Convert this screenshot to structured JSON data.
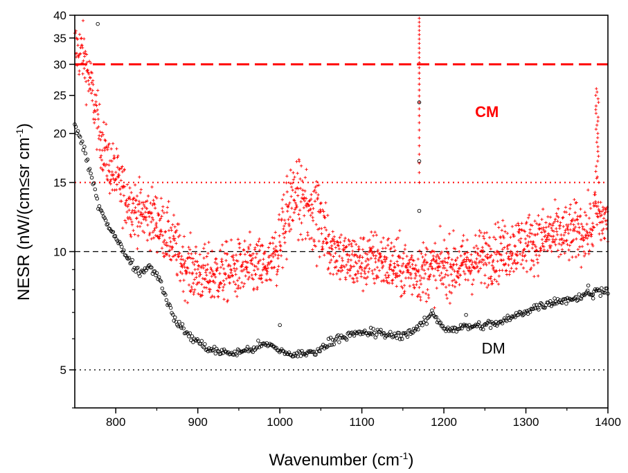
{
  "chart_data": {
    "type": "scatter",
    "xlabel_main": "Wavenumber (cm",
    "xlabel_sup": "-1",
    "xlabel_end": ")",
    "ylabel_main": "NESR (nW/(cm≤sr cm",
    "ylabel_sup": "-1",
    "ylabel_end": ")",
    "xlim": [
      750,
      1400
    ],
    "ylim": [
      4,
      40
    ],
    "yscale": "log",
    "x_ticks": [
      800,
      900,
      1000,
      1100,
      1200,
      1300,
      1400
    ],
    "x_tick_labels": [
      "800",
      "900",
      "1000",
      "1100",
      "1200",
      "1300",
      "1400"
    ],
    "y_ticks": [
      5,
      10,
      15,
      20,
      25,
      30,
      35,
      40
    ],
    "y_tick_labels": [
      "5",
      "10",
      "15",
      "20",
      "25",
      "30",
      "35",
      "40"
    ],
    "reference_lines": [
      {
        "y": 30,
        "style": "dashed-thick",
        "color": "#ff0000"
      },
      {
        "y": 15,
        "style": "dotted",
        "color": "#ff0000"
      },
      {
        "y": 10,
        "style": "dashed",
        "color": "#000000"
      },
      {
        "y": 5,
        "style": "dotted",
        "color": "#000000"
      }
    ],
    "annotations": [
      {
        "text": "CM",
        "x": 1238,
        "y": 22,
        "color": "#ff0000"
      },
      {
        "text": "DM",
        "x": 1246,
        "y": 5.5,
        "color": "#000000"
      }
    ],
    "series": [
      {
        "name": "CM",
        "marker": "plus",
        "color": "#ff0000",
        "x": [
          750,
          760,
          770,
          780,
          790,
          800,
          810,
          820,
          830,
          840,
          850,
          860,
          870,
          880,
          890,
          900,
          910,
          920,
          930,
          940,
          950,
          960,
          970,
          980,
          990,
          1000,
          1005,
          1010,
          1020,
          1030,
          1040,
          1050,
          1060,
          1070,
          1080,
          1090,
          1100,
          1110,
          1120,
          1130,
          1140,
          1150,
          1160,
          1170,
          1180,
          1190,
          1200,
          1210,
          1220,
          1230,
          1240,
          1250,
          1260,
          1270,
          1280,
          1290,
          1300,
          1310,
          1320,
          1330,
          1340,
          1350,
          1360,
          1370,
          1380,
          1385,
          1390,
          1400
        ],
        "y": [
          33,
          32,
          26,
          20,
          17,
          15.5,
          14,
          13,
          12.5,
          12.3,
          12,
          11.2,
          10.5,
          9.5,
          9,
          8.8,
          8.7,
          8.7,
          8.8,
          8.9,
          9,
          9.1,
          9.1,
          9.1,
          9.2,
          10.5,
          12,
          13,
          14,
          13,
          13,
          12,
          10.5,
          10,
          9.5,
          9.4,
          9.4,
          9.5,
          9.6,
          9.4,
          9.2,
          9,
          9,
          8.9,
          9,
          9,
          9.1,
          9.2,
          9.2,
          9.3,
          9.5,
          9.7,
          9.9,
          10,
          10.2,
          10.4,
          10.5,
          10.6,
          10.8,
          11,
          11,
          11,
          11.3,
          11.3,
          11.3,
          13,
          12,
          12
        ]
      },
      {
        "name": "DM",
        "marker": "circle",
        "color": "#000000",
        "x": [
          750,
          760,
          770,
          780,
          790,
          800,
          810,
          820,
          830,
          840,
          850,
          860,
          870,
          880,
          890,
          900,
          910,
          920,
          930,
          940,
          950,
          960,
          970,
          980,
          990,
          1000,
          1010,
          1020,
          1030,
          1040,
          1050,
          1060,
          1070,
          1080,
          1090,
          1100,
          1110,
          1120,
          1130,
          1140,
          1150,
          1160,
          1170,
          1180,
          1185,
          1190,
          1200,
          1210,
          1220,
          1230,
          1240,
          1250,
          1260,
          1270,
          1280,
          1290,
          1300,
          1310,
          1320,
          1330,
          1340,
          1350,
          1360,
          1370,
          1380,
          1390,
          1400
        ],
        "y": [
          21,
          18.5,
          15.5,
          13,
          11.8,
          10.8,
          10,
          9.3,
          8.8,
          9.2,
          8.8,
          7.8,
          6.8,
          6.4,
          6.1,
          5.9,
          5.7,
          5.6,
          5.55,
          5.5,
          5.55,
          5.6,
          5.7,
          5.8,
          5.75,
          5.6,
          5.5,
          5.45,
          5.5,
          5.55,
          5.65,
          5.85,
          6.05,
          6.1,
          6.15,
          6.2,
          6.2,
          6.2,
          6.15,
          6.1,
          6.15,
          6.25,
          6.45,
          6.7,
          7,
          6.8,
          6.4,
          6.35,
          6.4,
          6.45,
          6.45,
          6.5,
          6.55,
          6.6,
          6.75,
          6.9,
          7.05,
          7.2,
          7.3,
          7.4,
          7.5,
          7.55,
          7.6,
          7.75,
          7.85,
          7.95,
          8.05
        ]
      }
    ]
  }
}
